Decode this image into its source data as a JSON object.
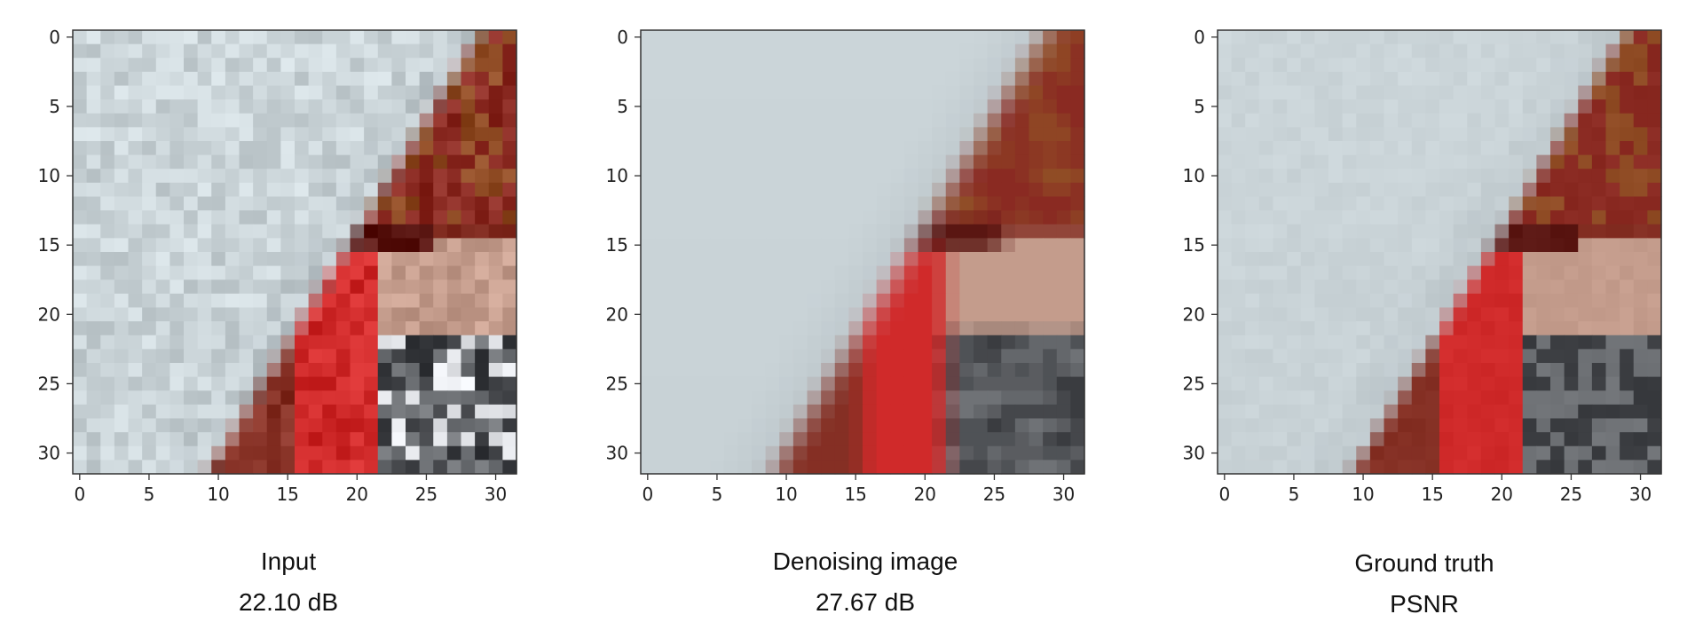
{
  "panels": [
    {
      "id": "input",
      "caption": "Input",
      "psnr": "22.10 dB",
      "variant": "blocky",
      "xticks": [
        "0",
        "5",
        "10",
        "15",
        "20",
        "25",
        "30"
      ],
      "yticks": [
        "0",
        "5",
        "10",
        "15",
        "20",
        "25",
        "30"
      ]
    },
    {
      "id": "denoised",
      "caption": "Denoising image",
      "psnr": "27.67 dB",
      "variant": "smooth",
      "xticks": [
        "0",
        "5",
        "10",
        "15",
        "20",
        "25",
        "30"
      ],
      "yticks": [
        "0",
        "5",
        "10",
        "15",
        "20",
        "25",
        "30"
      ]
    },
    {
      "id": "ground-truth",
      "caption": "Ground truth",
      "psnr": "PSNR",
      "variant": "clean",
      "xticks": [
        "0",
        "5",
        "10",
        "15",
        "20",
        "25",
        "30"
      ],
      "yticks": [
        "0",
        "5",
        "10",
        "15",
        "20",
        "25",
        "30"
      ]
    }
  ],
  "colors": {
    "background_gray": "#c8d2d6",
    "hat_red": "#8a2a22",
    "hat_dark": "#5a1612",
    "scarf_red": "#d02a2a",
    "face_skin": "#c49c8c",
    "coat_dark": "#3a3c40",
    "coat_gray": "#6f7276"
  }
}
